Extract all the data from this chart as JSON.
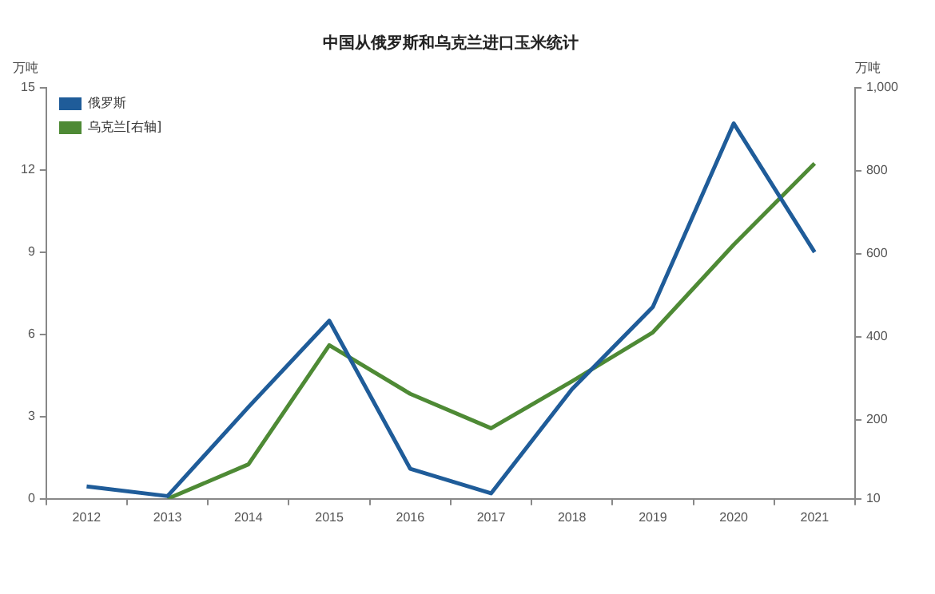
{
  "chart_data": {
    "type": "line",
    "title": "中国从俄罗斯和乌克兰进口玉米统计",
    "ylabel": "万吨",
    "y2label": "万吨",
    "categories": [
      "2012",
      "2013",
      "2014",
      "2015",
      "2016",
      "2017",
      "2018",
      "2019",
      "2020",
      "2021"
    ],
    "series": [
      {
        "name": "俄罗斯",
        "color": "#1f5c99",
        "values": [
          0.45,
          0.1,
          3.35,
          6.5,
          1.1,
          0.2,
          4.0,
          7.0,
          13.7,
          9.0
        ]
      },
      {
        "name": "乌克兰[右轴]",
        "color": "#4e8a35",
        "axis": "y2",
        "values": [
          null,
          10,
          93,
          380,
          263,
          180,
          293,
          411,
          622,
          818
        ]
      }
    ],
    "ylim": [
      0,
      15
    ],
    "yticks": [
      0,
      3,
      6,
      9,
      12,
      15
    ],
    "y2lim": [
      10,
      1000
    ],
    "y2ticks": [
      10,
      200,
      400,
      600,
      800,
      {
        "value": 1000,
        "label": "1,000"
      }
    ],
    "grid": false,
    "legend": "top left",
    "marker": "none",
    "line_style": "solid"
  }
}
